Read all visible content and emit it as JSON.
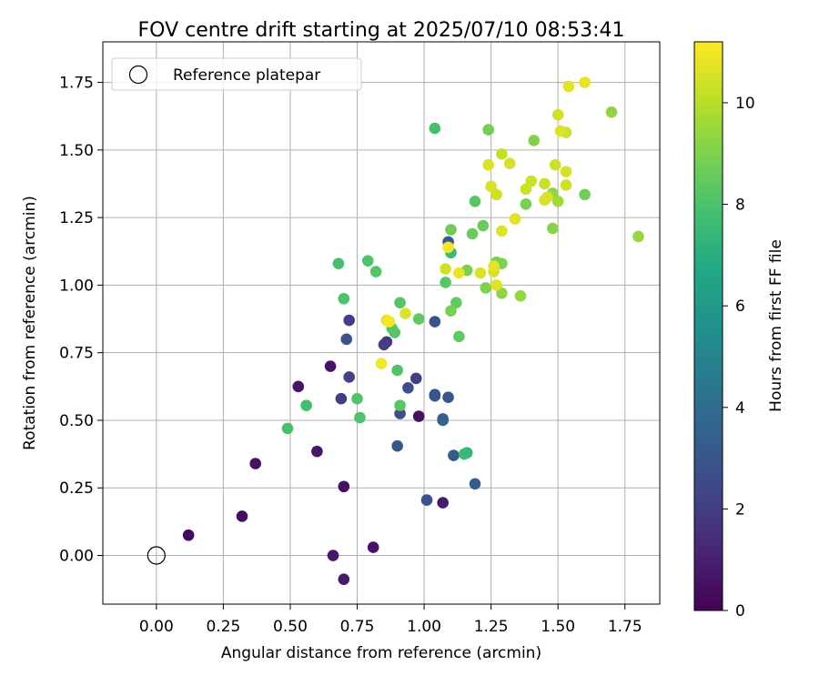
{
  "chart_data": {
    "type": "scatter",
    "title": "FOV centre drift starting at 2025/07/10 08:53:41",
    "xlabel": "Angular distance from reference (arcmin)",
    "ylabel": "Rotation from reference (arcmin)",
    "xlim": [
      -0.2,
      1.88
    ],
    "ylim": [
      -0.18,
      1.9
    ],
    "grid": true,
    "legend": {
      "placement": "upper-left",
      "label": "Reference platepar"
    },
    "colorbar": {
      "label": "Hours from first FF file",
      "colormap": "viridis",
      "range": [
        0,
        11.2
      ],
      "ticks": [
        "0",
        "2",
        "4",
        "6",
        "8",
        "10"
      ],
      "tick_values": [
        0,
        2,
        4,
        6,
        8,
        10
      ]
    },
    "x_ticks": [
      "0.00",
      "0.25",
      "0.50",
      "0.75",
      "1.00",
      "1.25",
      "1.50",
      "1.75"
    ],
    "x_tick_values": [
      0,
      0.25,
      0.5,
      0.75,
      1.0,
      1.25,
      1.5,
      1.75
    ],
    "y_ticks": [
      "0.00",
      "0.25",
      "0.50",
      "0.75",
      "1.00",
      "1.25",
      "1.50",
      "1.75"
    ],
    "y_tick_values": [
      0,
      0.25,
      0.5,
      0.75,
      1.0,
      1.25,
      1.5,
      1.75
    ],
    "reference": {
      "x": 0.0,
      "y": 0.0
    },
    "points": [
      {
        "x": 0.12,
        "y": 0.075,
        "h": 0.3
      },
      {
        "x": 0.32,
        "y": 0.145,
        "h": 0.4
      },
      {
        "x": 0.37,
        "y": 0.34,
        "h": 0.5
      },
      {
        "x": 0.53,
        "y": 0.625,
        "h": 0.6
      },
      {
        "x": 0.6,
        "y": 0.385,
        "h": 0.7
      },
      {
        "x": 0.65,
        "y": 0.7,
        "h": 0.6
      },
      {
        "x": 0.66,
        "y": 0.0,
        "h": 0.7
      },
      {
        "x": 0.7,
        "y": -0.088,
        "h": 0.8
      },
      {
        "x": 0.7,
        "y": 0.255,
        "h": 0.5
      },
      {
        "x": 0.81,
        "y": 0.03,
        "h": 0.6
      },
      {
        "x": 0.98,
        "y": 0.515,
        "h": 0.5
      },
      {
        "x": 1.07,
        "y": 0.195,
        "h": 0.8
      },
      {
        "x": 0.69,
        "y": 0.58,
        "h": 2.0
      },
      {
        "x": 0.72,
        "y": 0.66,
        "h": 2.2
      },
      {
        "x": 0.71,
        "y": 0.8,
        "h": 2.8
      },
      {
        "x": 0.72,
        "y": 0.87,
        "h": 2.0
      },
      {
        "x": 0.85,
        "y": 0.78,
        "h": 2.0
      },
      {
        "x": 0.86,
        "y": 0.79,
        "h": 1.8
      },
      {
        "x": 0.9,
        "y": 0.405,
        "h": 3.0
      },
      {
        "x": 0.91,
        "y": 0.525,
        "h": 2.7
      },
      {
        "x": 0.94,
        "y": 0.62,
        "h": 2.6
      },
      {
        "x": 0.97,
        "y": 0.655,
        "h": 2.0
      },
      {
        "x": 1.01,
        "y": 0.205,
        "h": 2.8
      },
      {
        "x": 1.04,
        "y": 0.595,
        "h": 3.0
      },
      {
        "x": 1.04,
        "y": 0.59,
        "h": 2.9
      },
      {
        "x": 1.04,
        "y": 0.865,
        "h": 2.9
      },
      {
        "x": 1.07,
        "y": 0.505,
        "h": 3.3
      },
      {
        "x": 1.07,
        "y": 0.5,
        "h": 3.5
      },
      {
        "x": 1.09,
        "y": 0.585,
        "h": 2.9
      },
      {
        "x": 1.09,
        "y": 1.16,
        "h": 3.1
      },
      {
        "x": 1.11,
        "y": 0.37,
        "h": 3.2
      },
      {
        "x": 1.19,
        "y": 0.265,
        "h": 3.3
      },
      {
        "x": 1.15,
        "y": 0.375,
        "h": 7.5
      },
      {
        "x": 1.16,
        "y": 0.38,
        "h": 7.3
      },
      {
        "x": 1.1,
        "y": 1.12,
        "h": 7.6
      },
      {
        "x": 0.49,
        "y": 0.47,
        "h": 7.9
      },
      {
        "x": 0.56,
        "y": 0.555,
        "h": 7.8
      },
      {
        "x": 0.68,
        "y": 1.08,
        "h": 7.9
      },
      {
        "x": 0.7,
        "y": 0.95,
        "h": 8.0
      },
      {
        "x": 0.75,
        "y": 0.58,
        "h": 8.1
      },
      {
        "x": 0.76,
        "y": 0.51,
        "h": 8.0
      },
      {
        "x": 0.79,
        "y": 1.09,
        "h": 8.1
      },
      {
        "x": 0.82,
        "y": 1.05,
        "h": 8.2
      },
      {
        "x": 0.88,
        "y": 0.84,
        "h": 8.3
      },
      {
        "x": 0.89,
        "y": 0.825,
        "h": 8.2
      },
      {
        "x": 0.9,
        "y": 0.685,
        "h": 8.1
      },
      {
        "x": 0.91,
        "y": 0.935,
        "h": 8.2
      },
      {
        "x": 0.91,
        "y": 0.555,
        "h": 8.3
      },
      {
        "x": 0.98,
        "y": 0.875,
        "h": 8.4
      },
      {
        "x": 1.04,
        "y": 1.58,
        "h": 7.9
      },
      {
        "x": 1.08,
        "y": 1.01,
        "h": 8.2
      },
      {
        "x": 1.1,
        "y": 1.205,
        "h": 8.7
      },
      {
        "x": 1.1,
        "y": 0.905,
        "h": 8.9
      },
      {
        "x": 1.12,
        "y": 0.935,
        "h": 8.5
      },
      {
        "x": 1.13,
        "y": 0.81,
        "h": 8.4
      },
      {
        "x": 1.16,
        "y": 1.055,
        "h": 8.9
      },
      {
        "x": 1.18,
        "y": 1.19,
        "h": 8.6
      },
      {
        "x": 1.19,
        "y": 1.31,
        "h": 8.3
      },
      {
        "x": 1.22,
        "y": 1.22,
        "h": 8.6
      },
      {
        "x": 1.23,
        "y": 0.99,
        "h": 9.0
      },
      {
        "x": 1.24,
        "y": 1.575,
        "h": 8.8
      },
      {
        "x": 1.27,
        "y": 1.085,
        "h": 8.9
      },
      {
        "x": 1.29,
        "y": 1.08,
        "h": 9.0
      },
      {
        "x": 1.29,
        "y": 0.97,
        "h": 9.3
      },
      {
        "x": 1.36,
        "y": 0.96,
        "h": 9.4
      },
      {
        "x": 1.38,
        "y": 1.3,
        "h": 8.9
      },
      {
        "x": 1.41,
        "y": 1.535,
        "h": 9.1
      },
      {
        "x": 1.48,
        "y": 1.21,
        "h": 9.2
      },
      {
        "x": 1.48,
        "y": 1.34,
        "h": 9.3
      },
      {
        "x": 1.5,
        "y": 1.31,
        "h": 9.6
      },
      {
        "x": 1.6,
        "y": 1.335,
        "h": 8.8
      },
      {
        "x": 1.7,
        "y": 1.64,
        "h": 9.3
      },
      {
        "x": 1.8,
        "y": 1.18,
        "h": 9.4
      },
      {
        "x": 0.84,
        "y": 0.71,
        "h": 11.0
      },
      {
        "x": 0.86,
        "y": 0.87,
        "h": 10.8
      },
      {
        "x": 0.87,
        "y": 0.865,
        "h": 11.0
      },
      {
        "x": 0.93,
        "y": 0.895,
        "h": 10.6
      },
      {
        "x": 1.08,
        "y": 1.06,
        "h": 10.4
      },
      {
        "x": 1.09,
        "y": 1.14,
        "h": 11.0
      },
      {
        "x": 1.13,
        "y": 1.045,
        "h": 10.9
      },
      {
        "x": 1.21,
        "y": 1.045,
        "h": 10.6
      },
      {
        "x": 1.24,
        "y": 1.445,
        "h": 10.6
      },
      {
        "x": 1.25,
        "y": 1.365,
        "h": 10.5
      },
      {
        "x": 1.26,
        "y": 1.07,
        "h": 10.8
      },
      {
        "x": 1.26,
        "y": 1.05,
        "h": 10.5
      },
      {
        "x": 1.27,
        "y": 1.335,
        "h": 10.3
      },
      {
        "x": 1.27,
        "y": 1.0,
        "h": 10.7
      },
      {
        "x": 1.29,
        "y": 1.2,
        "h": 10.6
      },
      {
        "x": 1.29,
        "y": 1.485,
        "h": 10.2
      },
      {
        "x": 1.32,
        "y": 1.45,
        "h": 10.5
      },
      {
        "x": 1.34,
        "y": 1.245,
        "h": 10.7
      },
      {
        "x": 1.38,
        "y": 1.355,
        "h": 10.3
      },
      {
        "x": 1.4,
        "y": 1.385,
        "h": 10.4
      },
      {
        "x": 1.45,
        "y": 1.375,
        "h": 10.3
      },
      {
        "x": 1.45,
        "y": 1.315,
        "h": 10.6
      },
      {
        "x": 1.46,
        "y": 1.325,
        "h": 10.5
      },
      {
        "x": 1.49,
        "y": 1.445,
        "h": 10.3
      },
      {
        "x": 1.5,
        "y": 1.63,
        "h": 10.4
      },
      {
        "x": 1.51,
        "y": 1.57,
        "h": 10.6
      },
      {
        "x": 1.53,
        "y": 1.42,
        "h": 10.5
      },
      {
        "x": 1.53,
        "y": 1.565,
        "h": 10.3
      },
      {
        "x": 1.53,
        "y": 1.37,
        "h": 10.4
      },
      {
        "x": 1.54,
        "y": 1.735,
        "h": 10.7
      },
      {
        "x": 1.6,
        "y": 1.75,
        "h": 10.8
      }
    ]
  }
}
